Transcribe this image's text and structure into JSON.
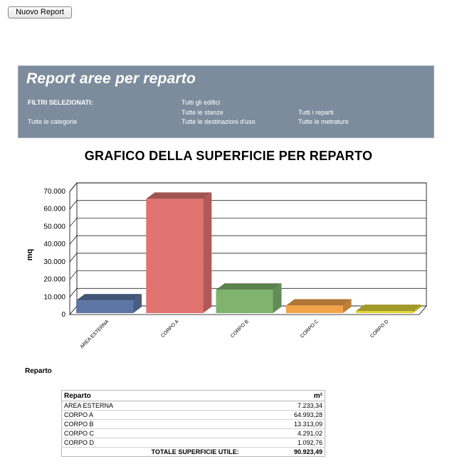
{
  "toolbar": {
    "new_report_label": "Nuovo Report"
  },
  "banner": {
    "title": "Report aree per reparto",
    "filters_label": "FILTRI SELEZIONATI:",
    "filters": {
      "edifici": "Tutti gli edifici",
      "stanze": "Tutte le stanze",
      "reparti": "Tutti i reparti",
      "categorie": "Tutte le categorie",
      "destinazioni": "Tutte le destinazioni d'uso",
      "metrature": "Tutte le metrature"
    },
    "bg_color": "#7d8c9d"
  },
  "chart_data": {
    "type": "bar",
    "title": "GRAFICO DELLA SUPERFICIE PER REPARTO",
    "categories": [
      "AREA ESTERNA",
      "CORPO A",
      "CORPO B",
      "CORPO C",
      "CORPO D"
    ],
    "values": [
      7233.34,
      64993.28,
      13313.09,
      4291.02,
      1092.76
    ],
    "colors": [
      "#5d76a5",
      "#e07370",
      "#7fb36e",
      "#f3a448",
      "#e2d43a"
    ],
    "xlabel": "Reparto",
    "ylabel": "mq",
    "ylim": [
      0,
      70000
    ],
    "yticks": [
      "0",
      "10.000",
      "20.000",
      "30.000",
      "40.000",
      "50.000",
      "60.000",
      "70.000"
    ],
    "grid": true,
    "legend": "none"
  },
  "table": {
    "headers": [
      "Reparto",
      "m²"
    ],
    "rows": [
      [
        "AREA ESTERNA",
        "7.233,34"
      ],
      [
        "CORPO A",
        "64.993,28"
      ],
      [
        "CORPO B",
        "13.313,09"
      ],
      [
        "CORPO C",
        "4.291,02"
      ],
      [
        "CORPO D",
        "1.092,76"
      ]
    ],
    "total_label": "TOTALE SUPERFICIE UTILE:",
    "total_value": "90.923,49"
  }
}
